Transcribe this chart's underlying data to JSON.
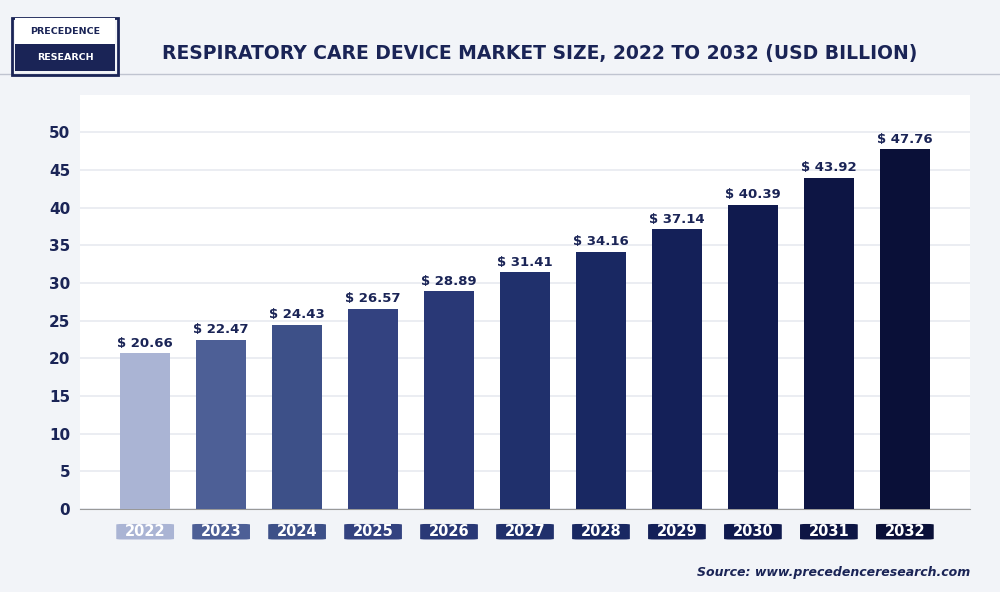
{
  "title": "RESPIRATORY CARE DEVICE MARKET SIZE, 2022 TO 2032 (USD BILLION)",
  "categories": [
    "2022",
    "2023",
    "2024",
    "2025",
    "2026",
    "2027",
    "2028",
    "2029",
    "2030",
    "2031",
    "2032"
  ],
  "values": [
    20.66,
    22.47,
    24.43,
    26.57,
    28.89,
    31.41,
    34.16,
    37.14,
    40.39,
    43.92,
    47.76
  ],
  "labels": [
    "$ 20.66",
    "$ 22.47",
    "$ 24.43",
    "$ 26.57",
    "$ 28.89",
    "$ 31.41",
    "$ 34.16",
    "$ 37.14",
    "$ 40.39",
    "$ 43.92",
    "$ 47.76"
  ],
  "bar_colors": [
    "#aab4d4",
    "#4d5f96",
    "#3d5088",
    "#334280",
    "#293876",
    "#20306c",
    "#192862",
    "#142058",
    "#101a4e",
    "#0d1544",
    "#0a1038"
  ],
  "tick_box_colors": [
    "#aab4d4",
    "#4d5f96",
    "#3d5088",
    "#334280",
    "#293876",
    "#20306c",
    "#192862",
    "#142058",
    "#101a4e",
    "#0d1544",
    "#0a1038"
  ],
  "ylim": [
    0,
    55
  ],
  "yticks": [
    0,
    5,
    10,
    15,
    20,
    25,
    30,
    35,
    40,
    45,
    50
  ],
  "bg_color": "#f2f4f8",
  "plot_bg_color": "#ffffff",
  "grid_color": "#e8eaf0",
  "source_text": "Source: www.precedenceresearch.com",
  "title_color": "#1a2456",
  "axis_color": "#1a2456",
  "value_fontsize": 9.5,
  "title_fontsize": 13.5,
  "tick_fontsize": 11,
  "ytick_fontsize": 11,
  "logo_top_text": "PRECEDENCE",
  "logo_bottom_text": "RESEARCH",
  "logo_top_bg": "#ffffff",
  "logo_bottom_bg": "#1a2456",
  "logo_border_color": "#1a2456"
}
